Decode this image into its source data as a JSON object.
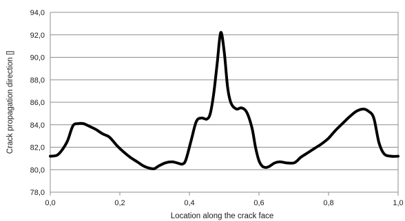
{
  "chart_data": {
    "type": "line",
    "title": "",
    "xlabel": "Location along the crack face",
    "ylabel": "Crack propagation direction []",
    "xlim": [
      0,
      1
    ],
    "ylim": [
      78,
      94
    ],
    "x_ticks": [
      0,
      0.2,
      0.4,
      0.6,
      0.8,
      1.0
    ],
    "x_tick_labels": [
      "0,0",
      "0,2",
      "0,4",
      "0,6",
      "0,8",
      "1,0"
    ],
    "y_ticks": [
      78,
      80,
      82,
      84,
      86,
      88,
      90,
      92,
      94
    ],
    "y_tick_labels": [
      "78,0",
      "80,0",
      "82,0",
      "84,0",
      "86,0",
      "88,0",
      "90,0",
      "92,0",
      "94,0"
    ],
    "grid": "horizontal",
    "legend": "none",
    "series_color": "#000000",
    "series": [
      {
        "x": [
          0.0,
          0.02,
          0.035,
          0.05,
          0.065,
          0.08,
          0.095,
          0.11,
          0.13,
          0.15,
          0.17,
          0.19,
          0.21,
          0.23,
          0.25,
          0.27,
          0.29,
          0.3,
          0.31,
          0.33,
          0.35,
          0.365,
          0.38,
          0.39,
          0.405,
          0.42,
          0.435,
          0.45,
          0.46,
          0.47,
          0.48,
          0.49,
          0.5,
          0.51,
          0.52,
          0.535,
          0.55,
          0.565,
          0.58,
          0.59,
          0.6,
          0.61,
          0.62,
          0.63,
          0.645,
          0.66,
          0.68,
          0.7,
          0.71,
          0.72,
          0.74,
          0.76,
          0.78,
          0.8,
          0.82,
          0.84,
          0.86,
          0.88,
          0.9,
          0.915,
          0.93,
          0.945,
          0.96,
          0.98,
          1.0
        ],
        "y": [
          81.2,
          81.3,
          81.8,
          82.6,
          83.9,
          84.1,
          84.1,
          83.9,
          83.6,
          83.2,
          82.9,
          82.2,
          81.6,
          81.1,
          80.7,
          80.3,
          80.1,
          80.1,
          80.3,
          80.6,
          80.7,
          80.6,
          80.5,
          80.9,
          82.6,
          84.3,
          84.6,
          84.5,
          85.0,
          86.8,
          89.5,
          92.2,
          90.5,
          87.3,
          85.9,
          85.4,
          85.5,
          85.1,
          83.7,
          82.0,
          80.8,
          80.3,
          80.2,
          80.3,
          80.6,
          80.7,
          80.6,
          80.6,
          80.8,
          81.1,
          81.5,
          81.9,
          82.3,
          82.8,
          83.5,
          84.1,
          84.7,
          85.2,
          85.4,
          85.2,
          84.6,
          82.4,
          81.4,
          81.2,
          81.2
        ]
      }
    ]
  }
}
